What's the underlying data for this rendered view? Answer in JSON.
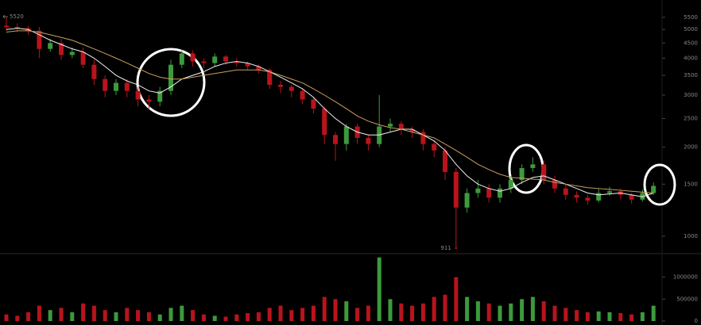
{
  "chart_data": {
    "type": "candlestick",
    "open": [
      5150,
      5100,
      5050,
      4950,
      4300,
      4500,
      4100,
      4200,
      3800,
      3400,
      3100,
      3300,
      3100,
      2900,
      2850,
      3100,
      3800,
      4150,
      3900,
      3850,
      4050,
      3900,
      3850,
      3750,
      3650,
      3250,
      3200,
      3100,
      2900,
      2700,
      2200,
      2050,
      2350,
      2150,
      2050,
      2350,
      2400,
      2300,
      2250,
      2050,
      1950,
      1650,
      1250,
      1400,
      1450,
      1350,
      1450,
      1550,
      1700,
      1750,
      1550,
      1450,
      1380,
      1350,
      1320,
      1400,
      1420,
      1380,
      1330,
      1400
    ],
    "high": [
      5520,
      5250,
      5150,
      5100,
      4650,
      4650,
      4350,
      4350,
      3950,
      3500,
      3400,
      3400,
      3200,
      3000,
      3200,
      3950,
      4250,
      4250,
      4000,
      4150,
      4100,
      4000,
      3900,
      3800,
      3700,
      3350,
      3250,
      3150,
      2950,
      2750,
      2250,
      2400,
      2400,
      2200,
      3000,
      2500,
      2450,
      2350,
      2300,
      2100,
      2000,
      1700,
      1450,
      1550,
      1500,
      1500,
      1600,
      1750,
      1850,
      1800,
      1600,
      1500,
      1420,
      1380,
      1450,
      1470,
      1450,
      1400,
      1440,
      1520
    ],
    "low": [
      4950,
      4900,
      4800,
      4000,
      4200,
      3950,
      4000,
      3700,
      3250,
      2950,
      3000,
      2950,
      2750,
      2700,
      2750,
      3000,
      3700,
      3750,
      3700,
      3750,
      3800,
      3750,
      3650,
      3550,
      3150,
      3050,
      2950,
      2800,
      2600,
      2050,
      1800,
      1950,
      2050,
      1950,
      2000,
      2250,
      2200,
      2150,
      1950,
      1850,
      1550,
      911,
      1200,
      1350,
      1300,
      1300,
      1400,
      1500,
      1650,
      1500,
      1400,
      1330,
      1300,
      1280,
      1300,
      1370,
      1330,
      1290,
      1310,
      1380
    ],
    "close": [
      5100,
      5050,
      4950,
      4300,
      4500,
      4100,
      4200,
      3800,
      3400,
      3100,
      3300,
      3100,
      2900,
      2850,
      3100,
      3800,
      4150,
      3900,
      3850,
      4050,
      3900,
      3850,
      3750,
      3650,
      3250,
      3200,
      3100,
      2900,
      2700,
      2200,
      2050,
      2350,
      2150,
      2050,
      2350,
      2400,
      2300,
      2250,
      2050,
      1950,
      1650,
      1250,
      1400,
      1450,
      1350,
      1450,
      1550,
      1700,
      1750,
      1550,
      1450,
      1380,
      1350,
      1320,
      1400,
      1420,
      1380,
      1330,
      1400,
      1480
    ],
    "volume": [
      150000,
      120000,
      200000,
      350000,
      250000,
      300000,
      200000,
      400000,
      350000,
      250000,
      200000,
      300000,
      250000,
      200000,
      150000,
      300000,
      350000,
      250000,
      150000,
      120000,
      100000,
      150000,
      180000,
      200000,
      300000,
      350000,
      250000,
      300000,
      350000,
      550000,
      500000,
      450000,
      300000,
      350000,
      1450000,
      500000,
      400000,
      350000,
      400000,
      550000,
      600000,
      1000000,
      550000,
      450000,
      400000,
      350000,
      400000,
      500000,
      550000,
      450000,
      350000,
      300000,
      250000,
      200000,
      220000,
      200000,
      180000,
      150000,
      200000,
      350000
    ],
    "moving_averages": [
      {
        "color": "#f0f0f0",
        "values": [
          5000,
          5050,
          5000,
          4800,
          4600,
          4450,
          4300,
          4200,
          4000,
          3750,
          3500,
          3350,
          3250,
          3100,
          3050,
          3200,
          3400,
          3500,
          3600,
          3750,
          3850,
          3900,
          3850,
          3750,
          3600,
          3450,
          3300,
          3150,
          2950,
          2700,
          2500,
          2350,
          2250,
          2200,
          2200,
          2250,
          2300,
          2300,
          2200,
          2100,
          1950,
          1750,
          1600,
          1500,
          1450,
          1420,
          1450,
          1520,
          1580,
          1600,
          1550,
          1500,
          1450,
          1400,
          1380,
          1390,
          1400,
          1380,
          1360,
          1400
        ]
      },
      {
        "color": "#c8a060",
        "values": [
          4900,
          4950,
          4950,
          4900,
          4800,
          4700,
          4600,
          4450,
          4300,
          4150,
          4000,
          3850,
          3700,
          3550,
          3450,
          3400,
          3400,
          3450,
          3500,
          3550,
          3600,
          3650,
          3650,
          3650,
          3600,
          3500,
          3400,
          3300,
          3150,
          3000,
          2850,
          2700,
          2550,
          2450,
          2380,
          2330,
          2300,
          2250,
          2200,
          2150,
          2050,
          1950,
          1850,
          1750,
          1680,
          1620,
          1580,
          1570,
          1560,
          1550,
          1520,
          1500,
          1480,
          1460,
          1450,
          1440,
          1430,
          1420,
          1410,
          1400
        ]
      }
    ],
    "up_color": "#3c9a3c",
    "down_color": "#b8141c",
    "log": true,
    "ylim": [
      884,
      6100
    ],
    "yticks": [
      1000,
      1500,
      2000,
      2500,
      3000,
      3500,
      4000,
      4500,
      5000,
      5500
    ],
    "vlim": [
      0,
      1500000
    ],
    "vticks": [
      0,
      500000,
      1000000
    ]
  }
}
